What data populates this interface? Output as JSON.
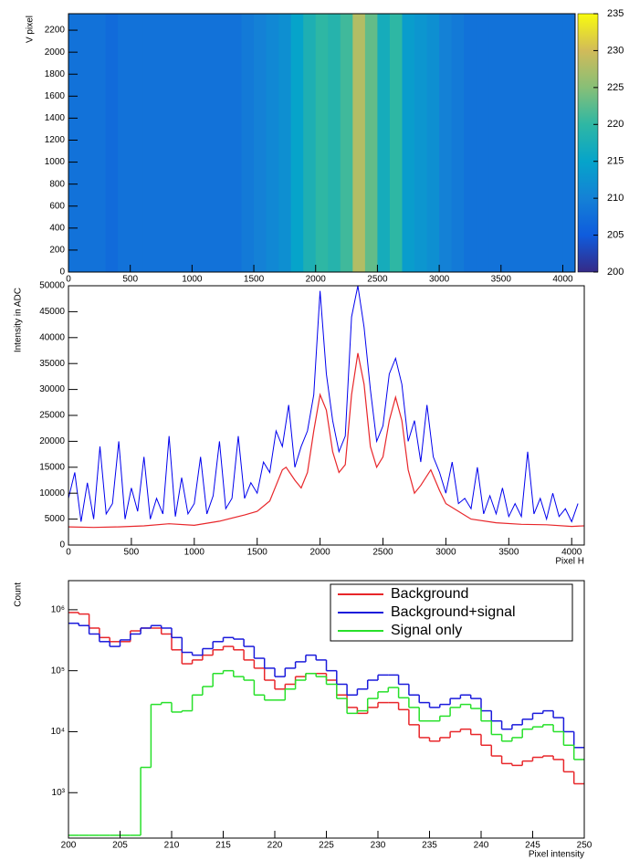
{
  "chart_data": [
    {
      "type": "heatmap",
      "y_label": "V pixel",
      "x_edges": [
        0,
        100,
        200,
        300,
        400,
        500,
        600,
        700,
        800,
        900,
        1000,
        1100,
        1200,
        1300,
        1400,
        1500,
        1600,
        1700,
        1800,
        1900,
        2000,
        2100,
        2200,
        2300,
        2400,
        2500,
        2600,
        2700,
        2800,
        2900,
        3000,
        3100,
        3200,
        3300,
        3400,
        3500,
        3600,
        3700,
        3800,
        3900,
        4000,
        4100
      ],
      "values": [
        208,
        208,
        208,
        207,
        208,
        208,
        208,
        208,
        208,
        208,
        208,
        208,
        208,
        208,
        209,
        210,
        211,
        212,
        215,
        218,
        220,
        219,
        221,
        228,
        223,
        217,
        220,
        214,
        213,
        212,
        210,
        209,
        208,
        208,
        208,
        208,
        208,
        208,
        208,
        208,
        208
      ],
      "xlim": [
        0,
        4100
      ],
      "xticks": [
        0,
        500,
        1000,
        1500,
        2000,
        2500,
        3000,
        3500,
        4000
      ],
      "ylim": [
        0,
        2350
      ],
      "yticks": [
        0,
        200,
        400,
        600,
        800,
        1000,
        1200,
        1400,
        1600,
        1800,
        2000,
        2200
      ],
      "zlim": [
        200,
        235
      ],
      "zticks": [
        200,
        205,
        210,
        215,
        220,
        225,
        230,
        235
      ],
      "colormap": [
        "#352a87",
        "#0f5cdd",
        "#1481d6",
        "#06a4ca",
        "#2eb7a4",
        "#87bf77",
        "#d1bb59",
        "#f9fb0e"
      ]
    },
    {
      "type": "line",
      "y_label": "Intensity in ADC",
      "x_label": "Pixel H",
      "xlim": [
        0,
        4100
      ],
      "xticks": [
        0,
        500,
        1000,
        1500,
        2000,
        2500,
        3000,
        3500,
        4000
      ],
      "ylim": [
        0,
        50000
      ],
      "yticks": [
        0,
        5000,
        10000,
        15000,
        20000,
        25000,
        30000,
        35000,
        40000,
        45000,
        50000
      ],
      "series": [
        {
          "color": "#0000ee",
          "x": [
            0,
            50,
            100,
            150,
            200,
            250,
            300,
            350,
            400,
            450,
            500,
            550,
            600,
            650,
            700,
            750,
            800,
            850,
            900,
            950,
            1000,
            1050,
            1100,
            1150,
            1200,
            1250,
            1300,
            1350,
            1400,
            1450,
            1500,
            1550,
            1600,
            1650,
            1700,
            1750,
            1800,
            1850,
            1900,
            1950,
            2000,
            2050,
            2100,
            2150,
            2200,
            2250,
            2300,
            2350,
            2400,
            2450,
            2500,
            2550,
            2600,
            2650,
            2700,
            2750,
            2800,
            2850,
            2900,
            2950,
            3000,
            3050,
            3100,
            3150,
            3200,
            3250,
            3300,
            3350,
            3400,
            3450,
            3500,
            3550,
            3600,
            3650,
            3700,
            3750,
            3800,
            3850,
            3900,
            3950,
            4000,
            4050
          ],
          "values": [
            9000,
            14000,
            4500,
            12000,
            5000,
            19000,
            6000,
            8000,
            20000,
            5000,
            11000,
            6500,
            17000,
            5000,
            9000,
            6000,
            21000,
            5500,
            13000,
            6000,
            8000,
            17000,
            6000,
            9500,
            20000,
            7000,
            9000,
            21000,
            9000,
            12000,
            10000,
            16000,
            14000,
            22000,
            19000,
            27000,
            15000,
            19000,
            22000,
            29000,
            49000,
            33000,
            24000,
            18000,
            21000,
            44000,
            50000,
            42000,
            30000,
            20000,
            23000,
            33000,
            36000,
            31000,
            20000,
            24000,
            16000,
            27000,
            17000,
            14000,
            10000,
            16000,
            8000,
            9000,
            7000,
            15000,
            6000,
            9500,
            6000,
            11000,
            5500,
            8000,
            5500,
            18000,
            6000,
            9000,
            5000,
            10000,
            5500,
            7000,
            4500,
            8000
          ]
        },
        {
          "color": "#e8262a",
          "x": [
            0,
            200,
            400,
            600,
            800,
            1000,
            1200,
            1400,
            1500,
            1600,
            1650,
            1700,
            1730,
            1800,
            1850,
            1900,
            1950,
            2000,
            2050,
            2100,
            2150,
            2200,
            2250,
            2300,
            2350,
            2400,
            2450,
            2500,
            2550,
            2600,
            2650,
            2700,
            2750,
            2800,
            2880,
            2950,
            3000,
            3200,
            3400,
            3600,
            3800,
            4000,
            4096
          ],
          "values": [
            3500,
            3400,
            3500,
            3700,
            4100,
            3800,
            4600,
            5800,
            6500,
            8500,
            11500,
            14500,
            15000,
            12500,
            11000,
            14000,
            22000,
            29000,
            26000,
            18000,
            14000,
            15500,
            29000,
            37000,
            31000,
            19000,
            15000,
            17000,
            24000,
            28500,
            24000,
            14500,
            10000,
            11500,
            14500,
            10500,
            8000,
            5000,
            4300,
            4000,
            3900,
            3600,
            3700
          ]
        }
      ]
    },
    {
      "type": "histogram",
      "y_label": "Count",
      "x_label": "Pixel intensity",
      "log_y": true,
      "legend": "top-right",
      "bins": [
        200,
        201,
        202,
        203,
        204,
        205,
        206,
        207,
        208,
        209,
        210,
        211,
        212,
        213,
        214,
        215,
        216,
        217,
        218,
        219,
        220,
        221,
        222,
        223,
        224,
        225,
        226,
        227,
        228,
        229,
        230,
        231,
        232,
        233,
        234,
        235,
        236,
        237,
        238,
        239,
        240,
        241,
        242,
        243,
        244,
        245,
        246,
        247,
        248,
        249,
        250
      ],
      "xlim": [
        200,
        250
      ],
      "xticks": [
        200,
        205,
        210,
        215,
        220,
        225,
        230,
        235,
        240,
        245,
        250
      ],
      "ylim": [
        180,
        3000000
      ],
      "yticks": [
        {
          "value": 1000,
          "label": "10³"
        },
        {
          "value": 10000,
          "label": "10⁴"
        },
        {
          "value": 100000,
          "label": "10⁵"
        },
        {
          "value": 1000000,
          "label": "10⁶"
        }
      ],
      "series": [
        {
          "name": "Background",
          "color": "#e8262a",
          "values": [
            900000,
            850000,
            500000,
            350000,
            300000,
            300000,
            450000,
            500000,
            500000,
            400000,
            220000,
            130000,
            150000,
            180000,
            220000,
            250000,
            220000,
            150000,
            110000,
            70000,
            50000,
            60000,
            80000,
            90000,
            90000,
            70000,
            40000,
            25000,
            20000,
            25000,
            30000,
            30000,
            23000,
            13000,
            8000,
            7000,
            8000,
            10000,
            11000,
            9000,
            6000,
            4000,
            3000,
            2800,
            3300,
            3800,
            4000,
            3500,
            2200,
            1400
          ]
        },
        {
          "name": "Background+signal",
          "color": "#1a1adb",
          "values": [
            600000,
            550000,
            400000,
            300000,
            250000,
            320000,
            400000,
            500000,
            550000,
            500000,
            350000,
            200000,
            180000,
            230000,
            300000,
            350000,
            330000,
            250000,
            160000,
            110000,
            80000,
            110000,
            140000,
            180000,
            150000,
            100000,
            60000,
            40000,
            50000,
            70000,
            85000,
            85000,
            60000,
            40000,
            30000,
            25000,
            28000,
            35000,
            40000,
            35000,
            22000,
            15000,
            11000,
            13000,
            16000,
            20000,
            22000,
            17000,
            10000,
            5500
          ]
        },
        {
          "name": "Signal only",
          "color": "#27e02a",
          "values": [
            200,
            200,
            200,
            200,
            200,
            200,
            200,
            2600,
            28000,
            30000,
            21000,
            22000,
            40000,
            55000,
            90000,
            100000,
            80000,
            70000,
            40000,
            33000,
            33000,
            50000,
            70000,
            90000,
            80000,
            60000,
            35000,
            20000,
            22000,
            35000,
            45000,
            53000,
            36000,
            25000,
            15000,
            15000,
            18000,
            25000,
            28000,
            24000,
            15000,
            9000,
            7000,
            8000,
            11000,
            12000,
            13000,
            10000,
            6000,
            3500
          ]
        }
      ]
    }
  ]
}
